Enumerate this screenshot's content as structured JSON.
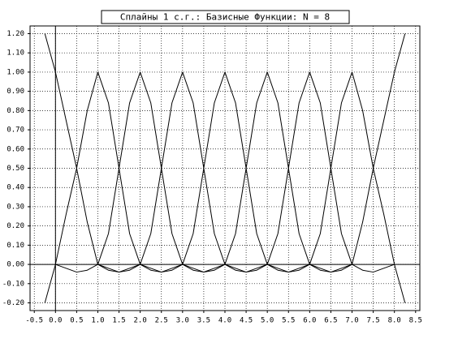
{
  "chart_data": {
    "type": "line",
    "title": "Сплайны 1 с.г.: Базисные Функции: N = 8",
    "x": [
      -0.25,
      0,
      0.25,
      0.5,
      0.75,
      1,
      1.25,
      1.5,
      1.75,
      2,
      2.25,
      2.5,
      2.75,
      3,
      3.25,
      3.5,
      3.75,
      4,
      4.25,
      4.5,
      4.75,
      5,
      5.25,
      5.5,
      5.75,
      6,
      6.25,
      6.5,
      6.75,
      7,
      7.25,
      7.5,
      7.75,
      8,
      8.25
    ],
    "series": [
      {
        "color": "#000000",
        "values": [
          1.2,
          1,
          0.75,
          0.5,
          0.22,
          0,
          -0.03,
          -0.04,
          -0.02,
          0,
          null,
          null,
          null,
          null,
          null,
          null,
          null,
          null,
          null,
          null,
          null,
          null,
          null,
          null,
          null,
          null,
          null,
          null,
          null,
          null,
          null,
          null,
          null,
          null,
          null
        ]
      },
      {
        "color": "#000000",
        "values": [
          -0.2,
          0,
          0.26,
          0.5,
          0.8,
          1,
          0.84,
          0.5,
          0.16,
          0,
          -0.03,
          -0.04,
          -0.02,
          0,
          null,
          null,
          null,
          null,
          null,
          null,
          null,
          null,
          null,
          null,
          null,
          null,
          null,
          null,
          null,
          null,
          null,
          null,
          null,
          null,
          null
        ]
      },
      {
        "color": "#000000",
        "values": [
          null,
          0,
          -0.02,
          -0.04,
          -0.03,
          0,
          0.16,
          0.5,
          0.84,
          1,
          0.84,
          0.5,
          0.16,
          0,
          -0.03,
          -0.04,
          -0.02,
          0,
          null,
          null,
          null,
          null,
          null,
          null,
          null,
          null,
          null,
          null,
          null,
          null,
          null,
          null,
          null,
          null,
          null
        ]
      },
      {
        "color": "#000000",
        "values": [
          null,
          null,
          null,
          null,
          null,
          0,
          -0.02,
          -0.04,
          -0.03,
          0,
          0.16,
          0.5,
          0.84,
          1,
          0.84,
          0.5,
          0.16,
          0,
          -0.03,
          -0.04,
          -0.02,
          0,
          null,
          null,
          null,
          null,
          null,
          null,
          null,
          null,
          null,
          null,
          null,
          null,
          null
        ]
      },
      {
        "color": "#000000",
        "values": [
          null,
          null,
          null,
          null,
          null,
          null,
          null,
          null,
          null,
          0,
          -0.02,
          -0.04,
          -0.03,
          0,
          0.16,
          0.5,
          0.84,
          1,
          0.84,
          0.5,
          0.16,
          0,
          -0.03,
          -0.04,
          -0.02,
          0,
          null,
          null,
          null,
          null,
          null,
          null,
          null,
          null,
          null
        ]
      },
      {
        "color": "#000000",
        "values": [
          null,
          null,
          null,
          null,
          null,
          null,
          null,
          null,
          null,
          null,
          null,
          null,
          null,
          0,
          -0.02,
          -0.04,
          -0.03,
          0,
          0.16,
          0.5,
          0.84,
          1,
          0.84,
          0.5,
          0.16,
          0,
          -0.03,
          -0.04,
          -0.02,
          0,
          null,
          null,
          null,
          null,
          null
        ]
      },
      {
        "color": "#000000",
        "values": [
          null,
          null,
          null,
          null,
          null,
          null,
          null,
          null,
          null,
          null,
          null,
          null,
          null,
          null,
          null,
          null,
          null,
          0,
          -0.02,
          -0.04,
          -0.03,
          0,
          0.16,
          0.5,
          0.84,
          1,
          0.84,
          0.5,
          0.16,
          0,
          -0.03,
          -0.04,
          -0.02,
          0,
          null
        ]
      },
      {
        "color": "#000000",
        "values": [
          null,
          null,
          null,
          null,
          null,
          null,
          null,
          null,
          null,
          null,
          null,
          null,
          null,
          null,
          null,
          null,
          null,
          null,
          null,
          null,
          null,
          0,
          -0.02,
          -0.04,
          -0.03,
          0,
          0.16,
          0.5,
          0.84,
          1,
          0.8,
          0.5,
          0.26,
          0,
          -0.2
        ]
      },
      {
        "color": "#000000",
        "values": [
          null,
          null,
          null,
          null,
          null,
          null,
          null,
          null,
          null,
          null,
          null,
          null,
          null,
          null,
          null,
          null,
          null,
          null,
          null,
          null,
          null,
          null,
          null,
          null,
          null,
          0,
          -0.02,
          -0.04,
          -0.03,
          0,
          0.22,
          0.5,
          0.75,
          1,
          1.2
        ]
      }
    ],
    "xlim": [
      -0.6,
      8.6
    ],
    "xticks": [
      -0.5,
      {
        "value": 0,
        "label": "0.0"
      },
      0.5,
      {
        "value": 1,
        "label": "1.0"
      },
      1.5,
      {
        "value": 2,
        "label": "2.0"
      },
      2.5,
      {
        "value": 3,
        "label": "3.0"
      },
      3.5,
      {
        "value": 4,
        "label": "4.0"
      },
      4.5,
      {
        "value": 5,
        "label": "5.0"
      },
      5.5,
      {
        "value": 6,
        "label": "6.0"
      },
      6.5,
      {
        "value": 7,
        "label": "7.0"
      },
      7.5,
      {
        "value": 8,
        "label": "8.0"
      },
      8.5
    ],
    "ylim": [
      -0.24,
      1.24
    ],
    "yticks": [
      {
        "value": -0.2,
        "label": "-0.20"
      },
      {
        "value": -0.1,
        "label": "-0.10"
      },
      {
        "value": 0,
        "label": "0.00"
      },
      {
        "value": 0.1,
        "label": "0.10"
      },
      {
        "value": 0.2,
        "label": "0.20"
      },
      {
        "value": 0.3,
        "label": "0.30"
      },
      {
        "value": 0.4,
        "label": "0.40"
      },
      {
        "value": 0.5,
        "label": "0.50"
      },
      {
        "value": 0.6,
        "label": "0.60"
      },
      {
        "value": 0.7,
        "label": "0.70"
      },
      {
        "value": 0.8,
        "label": "0.80"
      },
      {
        "value": 0.9,
        "label": "0.90"
      },
      {
        "value": 1,
        "label": "1.00"
      },
      {
        "value": 1.1,
        "label": "1.10"
      },
      {
        "value": 1.2,
        "label": "1.20"
      }
    ],
    "grid": true
  }
}
